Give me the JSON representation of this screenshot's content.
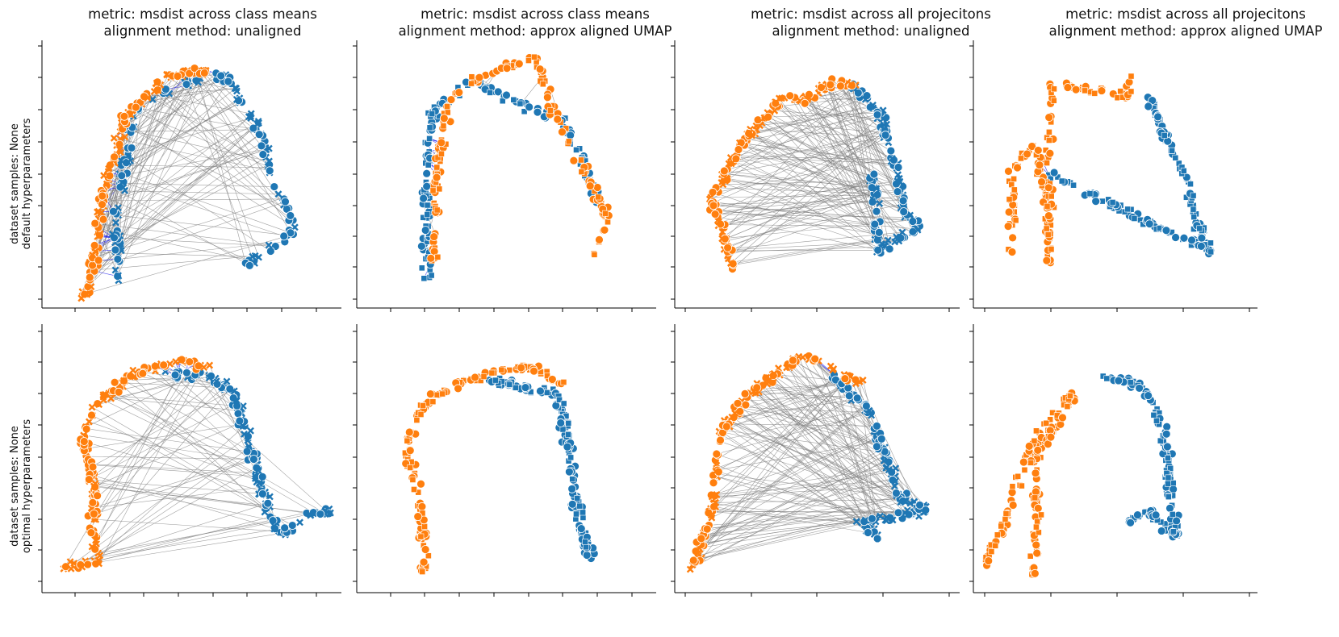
{
  "figure": {
    "columns": [
      {
        "title_line1": "metric: msdist across class means",
        "title_line2": "alignment method: unaligned"
      },
      {
        "title_line1": "metric: msdist across class means",
        "title_line2": "alignment method: approx aligned UMAP"
      },
      {
        "title_line1": "metric: msdist across all projecitons",
        "title_line2": "alignment method: unaligned"
      },
      {
        "title_line1": "metric: msdist across all projecitons",
        "title_line2": "alignment method: approx aligned UMAP"
      }
    ],
    "rows": [
      {
        "label_line1": "dataset samples: None",
        "label_line2": "default hyperparameters"
      },
      {
        "label_line1": "dataset samples: None",
        "label_line2": "optimal hyperparameters"
      }
    ]
  },
  "colors": {
    "series_a": "#ff7f0e",
    "series_b": "#1f77b4",
    "link_close": "#2222ee",
    "link_far": "#808080",
    "axis": "#000000"
  },
  "marker_shapes": [
    "circle",
    "x-mark",
    "square"
  ],
  "chart_data": [
    {
      "panel": "row1-col1",
      "type": "scatter",
      "xlim": [
        0,
        1
      ],
      "ylim": [
        0,
        1
      ],
      "grid": false,
      "legend": "none",
      "series": [
        {
          "color": "series_a",
          "markers": [
            "x-mark",
            "circle"
          ],
          "path": [
            [
              0.13,
              0.02
            ],
            [
              0.16,
              0.15
            ],
            [
              0.2,
              0.45
            ],
            [
              0.27,
              0.72
            ],
            [
              0.42,
              0.88
            ],
            [
              0.55,
              0.9
            ]
          ]
        },
        {
          "color": "series_b",
          "markers": [
            "circle",
            "x-mark"
          ],
          "path": [
            [
              0.25,
              0.1
            ],
            [
              0.24,
              0.35
            ],
            [
              0.3,
              0.75
            ],
            [
              0.46,
              0.85
            ],
            [
              0.62,
              0.88
            ],
            [
              0.72,
              0.7
            ],
            [
              0.8,
              0.45
            ],
            [
              0.85,
              0.28
            ],
            [
              0.69,
              0.15
            ]
          ]
        }
      ],
      "links": "many-long"
    },
    {
      "panel": "row1-col2",
      "type": "scatter",
      "xlim": [
        0,
        1
      ],
      "ylim": [
        0,
        1
      ],
      "grid": false,
      "legend": "none",
      "series": [
        {
          "color": "series_a",
          "markers": [
            "square",
            "circle"
          ],
          "path": [
            [
              0.25,
              0.15
            ],
            [
              0.26,
              0.5
            ],
            [
              0.3,
              0.8
            ],
            [
              0.45,
              0.9
            ],
            [
              0.6,
              0.95
            ],
            [
              0.66,
              0.75
            ],
            [
              0.75,
              0.55
            ],
            [
              0.85,
              0.33
            ],
            [
              0.8,
              0.2
            ]
          ]
        },
        {
          "color": "series_b",
          "markers": [
            "square",
            "circle"
          ],
          "path": [
            [
              0.23,
              0.1
            ],
            [
              0.22,
              0.45
            ],
            [
              0.25,
              0.75
            ],
            [
              0.38,
              0.86
            ],
            [
              0.7,
              0.7
            ],
            [
              0.82,
              0.4
            ]
          ]
        }
      ],
      "links": "few-short"
    },
    {
      "panel": "row1-col3",
      "type": "scatter",
      "xlim": [
        0,
        1
      ],
      "ylim": [
        0,
        1
      ],
      "grid": false,
      "legend": "none",
      "series": [
        {
          "color": "series_a",
          "markers": [
            "circle",
            "x-mark"
          ],
          "path": [
            [
              0.2,
              0.1
            ],
            [
              0.12,
              0.4
            ],
            [
              0.25,
              0.65
            ],
            [
              0.38,
              0.8
            ],
            [
              0.45,
              0.78
            ],
            [
              0.55,
              0.85
            ],
            [
              0.65,
              0.85
            ]
          ]
        },
        {
          "color": "series_b",
          "markers": [
            "circle",
            "x-mark"
          ],
          "path": [
            [
              0.62,
              0.85
            ],
            [
              0.72,
              0.75
            ],
            [
              0.78,
              0.55
            ],
            [
              0.82,
              0.35
            ],
            [
              0.88,
              0.3
            ],
            [
              0.72,
              0.2
            ],
            [
              0.7,
              0.5
            ]
          ]
        }
      ],
      "links": "many-long"
    },
    {
      "panel": "row1-col4",
      "type": "scatter",
      "xlim": [
        0,
        1
      ],
      "ylim": [
        0,
        1
      ],
      "grid": false,
      "legend": "none",
      "series": [
        {
          "color": "series_a",
          "markers": [
            "square",
            "circle"
          ],
          "path": [
            [
              0.13,
              0.2
            ],
            [
              0.12,
              0.5
            ],
            [
              0.2,
              0.62
            ],
            [
              0.25,
              0.4
            ],
            [
              0.26,
              0.15
            ],
            [
              0.25,
              0.7
            ],
            [
              0.27,
              0.85
            ],
            [
              0.55,
              0.8
            ],
            [
              0.55,
              0.9
            ]
          ]
        },
        {
          "color": "series_b",
          "markers": [
            "square",
            "circle"
          ],
          "path": [
            [
              0.62,
              0.8
            ],
            [
              0.7,
              0.6
            ],
            [
              0.77,
              0.45
            ],
            [
              0.8,
              0.3
            ],
            [
              0.85,
              0.2
            ],
            [
              0.25,
              0.5
            ]
          ]
        }
      ],
      "links": "few-short"
    },
    {
      "panel": "row2-col1",
      "type": "scatter",
      "xlim": [
        0,
        1
      ],
      "ylim": [
        0,
        1
      ],
      "grid": false,
      "legend": "none",
      "series": [
        {
          "color": "series_a",
          "markers": [
            "x-mark",
            "circle"
          ],
          "path": [
            [
              0.05,
              0.08
            ],
            [
              0.17,
              0.1
            ],
            [
              0.16,
              0.4
            ],
            [
              0.12,
              0.6
            ],
            [
              0.18,
              0.72
            ],
            [
              0.3,
              0.82
            ],
            [
              0.45,
              0.88
            ],
            [
              0.55,
              0.85
            ]
          ]
        },
        {
          "color": "series_b",
          "markers": [
            "circle",
            "x-mark"
          ],
          "path": [
            [
              0.4,
              0.82
            ],
            [
              0.55,
              0.82
            ],
            [
              0.65,
              0.75
            ],
            [
              0.7,
              0.55
            ],
            [
              0.75,
              0.35
            ],
            [
              0.8,
              0.2
            ],
            [
              0.9,
              0.28
            ],
            [
              0.98,
              0.3
            ]
          ]
        }
      ],
      "links": "mixed"
    },
    {
      "panel": "row2-col2",
      "type": "scatter",
      "xlim": [
        0,
        1
      ],
      "ylim": [
        0,
        1
      ],
      "grid": false,
      "legend": "none",
      "series": [
        {
          "color": "series_a",
          "markers": [
            "square",
            "circle"
          ],
          "path": [
            [
              0.22,
              0.05
            ],
            [
              0.2,
              0.35
            ],
            [
              0.15,
              0.55
            ],
            [
              0.22,
              0.72
            ],
            [
              0.35,
              0.8
            ],
            [
              0.5,
              0.85
            ],
            [
              0.6,
              0.85
            ],
            [
              0.7,
              0.78
            ]
          ]
        },
        {
          "color": "series_b",
          "markers": [
            "square",
            "circle"
          ],
          "path": [
            [
              0.45,
              0.8
            ],
            [
              0.68,
              0.75
            ],
            [
              0.72,
              0.5
            ],
            [
              0.75,
              0.25
            ],
            [
              0.8,
              0.1
            ]
          ]
        }
      ],
      "links": "none"
    },
    {
      "panel": "row2-col3",
      "type": "scatter",
      "xlim": [
        0,
        1
      ],
      "ylim": [
        0,
        1
      ],
      "grid": false,
      "legend": "none",
      "series": [
        {
          "color": "series_a",
          "markers": [
            "circle",
            "x-mark"
          ],
          "path": [
            [
              0.05,
              0.08
            ],
            [
              0.12,
              0.3
            ],
            [
              0.15,
              0.6
            ],
            [
              0.25,
              0.75
            ],
            [
              0.38,
              0.85
            ],
            [
              0.45,
              0.9
            ],
            [
              0.55,
              0.85
            ],
            [
              0.65,
              0.8
            ]
          ]
        },
        {
          "color": "series_b",
          "markers": [
            "circle",
            "x-mark"
          ],
          "path": [
            [
              0.55,
              0.82
            ],
            [
              0.68,
              0.7
            ],
            [
              0.75,
              0.5
            ],
            [
              0.8,
              0.35
            ],
            [
              0.9,
              0.3
            ],
            [
              0.66,
              0.25
            ],
            [
              0.72,
              0.2
            ]
          ]
        }
      ],
      "links": "many-long"
    },
    {
      "panel": "row2-col4",
      "type": "scatter",
      "xlim": [
        0,
        1
      ],
      "ylim": [
        0,
        1
      ],
      "grid": false,
      "legend": "none",
      "series": [
        {
          "color": "series_a",
          "markers": [
            "square",
            "circle"
          ],
          "path": [
            [
              0.02,
              0.1
            ],
            [
              0.1,
              0.25
            ],
            [
              0.15,
              0.45
            ],
            [
              0.25,
              0.65
            ],
            [
              0.35,
              0.75
            ],
            [
              0.2,
              0.5
            ],
            [
              0.22,
              0.25
            ],
            [
              0.2,
              0.05
            ]
          ]
        },
        {
          "color": "series_b",
          "markers": [
            "square",
            "circle"
          ],
          "path": [
            [
              0.45,
              0.82
            ],
            [
              0.6,
              0.78
            ],
            [
              0.68,
              0.6
            ],
            [
              0.7,
              0.35
            ],
            [
              0.72,
              0.2
            ],
            [
              0.62,
              0.3
            ],
            [
              0.55,
              0.25
            ]
          ]
        }
      ],
      "links": "none"
    }
  ]
}
